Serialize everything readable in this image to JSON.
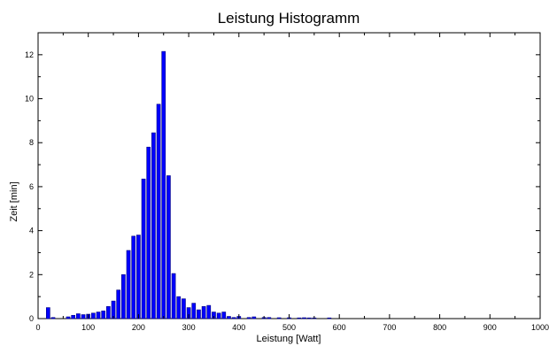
{
  "chart_data": {
    "type": "bar",
    "title": "Leistung Histogramm",
    "xlabel": "Leistung [Watt]",
    "ylabel": "Zeit [min]",
    "xlim": [
      0,
      1000
    ],
    "ylim": [
      0,
      13
    ],
    "xticks": [
      "0",
      "100",
      "200",
      "300",
      "400",
      "500",
      "600",
      "700",
      "800",
      "900",
      "1000"
    ],
    "yticks": [
      "0",
      "2",
      "4",
      "6",
      "8",
      "10",
      "12"
    ],
    "grid": false,
    "bar_color": "#0000ff",
    "bar_edge_color": "#000080",
    "bin_width": 10,
    "x": [
      20,
      30,
      60,
      70,
      80,
      90,
      100,
      110,
      120,
      130,
      140,
      150,
      160,
      170,
      180,
      190,
      200,
      210,
      220,
      230,
      240,
      250,
      260,
      270,
      280,
      290,
      300,
      310,
      320,
      330,
      340,
      350,
      360,
      370,
      380,
      390,
      400,
      420,
      430,
      450,
      460,
      480,
      500,
      520,
      530,
      540,
      550,
      580
    ],
    "values": [
      0.5,
      0.05,
      0.08,
      0.15,
      0.22,
      0.18,
      0.2,
      0.25,
      0.3,
      0.35,
      0.55,
      0.8,
      1.3,
      2.0,
      3.1,
      3.75,
      3.8,
      6.35,
      7.8,
      8.45,
      9.75,
      12.15,
      6.5,
      2.05,
      1.0,
      0.9,
      0.5,
      0.7,
      0.4,
      0.55,
      0.6,
      0.3,
      0.25,
      0.3,
      0.1,
      0.05,
      0.1,
      0.05,
      0.08,
      0.05,
      0.05,
      0.04,
      0.04,
      0.03,
      0.04,
      0.03,
      0.02,
      0.03
    ]
  }
}
